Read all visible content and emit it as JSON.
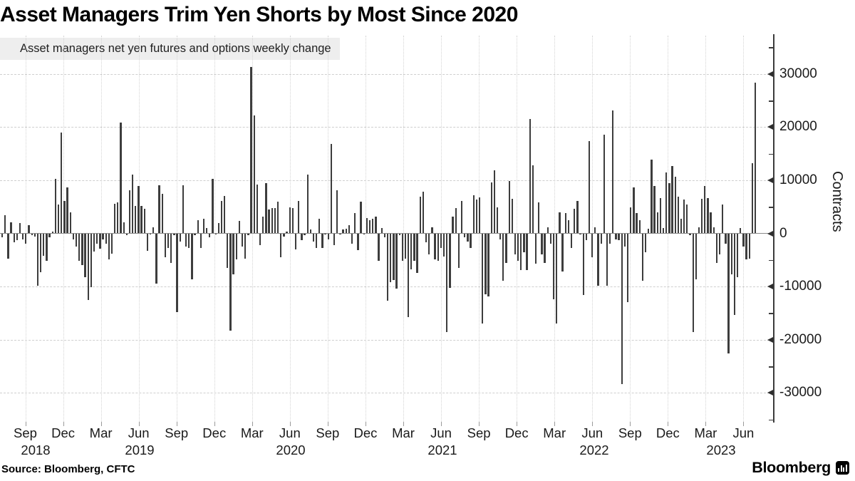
{
  "title": "Asset Managers Trim Yen Shorts by Most Since 2020",
  "legend": {
    "label": "Asset managers net yen futures and options weekly change",
    "swatch_color": "#3d3d3d"
  },
  "source": "Source: Bloomberg, CFTC",
  "branding": {
    "wordmark": "Bloomberg",
    "icon": "bloomberg-terminal-icon"
  },
  "colors": {
    "background": "#ffffff",
    "bar": "#3d3d3d",
    "grid": "#cfcfcf",
    "axis": "#3c3c3c",
    "zero_line": "#8a8a8a",
    "legend_bg": "#eeeeee",
    "text": "#1a1a1a"
  },
  "chart_data": {
    "type": "bar",
    "title": "Asset Managers Trim Yen Shorts by Most Since 2020",
    "series_name": "Asset managers net yen futures and options weekly change",
    "unit": "contracts",
    "frequency": "weekly",
    "x_start": "2018-07",
    "x_end": "2023-07",
    "grid": true,
    "legend_position": "top-left",
    "y_axis": {
      "label": "Contracts",
      "side": "right",
      "tick_values": [
        30000,
        20000,
        10000,
        0,
        -10000,
        -20000,
        -30000
      ],
      "minor_tick_values": [
        35000,
        25000,
        15000,
        5000,
        -5000,
        -15000,
        -25000,
        -35000
      ],
      "range": [
        -33500,
        35500
      ]
    },
    "x_axis": {
      "month_ticks": [
        "Sep",
        "Dec",
        "Mar",
        "Jun",
        "Sep",
        "Dec",
        "Mar",
        "Jun",
        "Sep",
        "Dec",
        "Mar",
        "Jun",
        "Sep",
        "Dec",
        "Mar",
        "Jun",
        "Sep",
        "Dec",
        "Mar",
        "Jun"
      ],
      "year_labels": [
        "2018",
        "2019",
        "2020",
        "2021",
        "2022",
        "2023"
      ]
    },
    "values": [
      -700,
      3400,
      -4700,
      2100,
      -1700,
      -1300,
      1900,
      -1100,
      -2000,
      1500,
      -400,
      -600,
      -9800,
      -7300,
      -4200,
      -5200,
      -800,
      400,
      10200,
      5400,
      19000,
      6100,
      8700,
      3900,
      -1100,
      -2500,
      -5200,
      -6000,
      -8200,
      -12500,
      -10100,
      -3400,
      -2000,
      -2900,
      -1100,
      -2000,
      -4900,
      -3800,
      5600,
      5800,
      20900,
      2100,
      -400,
      8100,
      11100,
      5200,
      8900,
      5100,
      4600,
      -3300,
      -100,
      1200,
      -9500,
      9100,
      7500,
      -4500,
      -2700,
      -5600,
      -300,
      -14800,
      -1600,
      9100,
      -2500,
      -2700,
      -8600,
      -300,
      2500,
      -2800,
      2800,
      1000,
      -700,
      10200,
      -200,
      1900,
      6100,
      7000,
      -6500,
      -18300,
      -7700,
      -4900,
      2400,
      -2500,
      -4700,
      -300,
      31300,
      22200,
      9200,
      -2200,
      3100,
      9500,
      4500,
      4800,
      4700,
      6000,
      -4500,
      -600,
      300,
      4900,
      4800,
      -3000,
      6100,
      -1300,
      -400,
      11100,
      800,
      -1500,
      -2800,
      2700,
      -2700,
      -200,
      -1100,
      16800,
      -2200,
      8100,
      -100,
      800,
      900,
      1600,
      -1900,
      3800,
      -3100,
      6000,
      -100,
      2900,
      2500,
      2800,
      3100,
      -5100,
      1000,
      -800,
      -12700,
      -9200,
      -8800,
      -10400,
      -300,
      -5200,
      -4700,
      -15800,
      -6800,
      -5200,
      -7500,
      6900,
      7900,
      -1700,
      -3900,
      1200,
      -4900,
      -5100,
      -2800,
      -4300,
      -18600,
      -10300,
      3100,
      4700,
      -6500,
      6100,
      -700,
      -1600,
      -2800,
      7200,
      6400,
      6800,
      -17000,
      -11400,
      -11900,
      9600,
      11900,
      4900,
      -1100,
      -8900,
      -5600,
      9800,
      6500,
      -3900,
      -5200,
      -6900,
      -3600,
      -6900,
      21500,
      12800,
      -5700,
      5800,
      -3900,
      -5600,
      1200,
      -2000,
      -12400,
      -17000,
      4000,
      -7200,
      3800,
      2500,
      -2700,
      4600,
      6100,
      -200,
      -11600,
      -1300,
      17300,
      -4500,
      1200,
      -9800,
      -2000,
      18600,
      -9800,
      -2000,
      23100,
      -1100,
      -1300,
      -28400,
      -2500,
      -13000,
      4900,
      8600,
      3800,
      2500,
      -8900,
      -3600,
      900,
      13900,
      8900,
      3900,
      6700,
      1000,
      11500,
      9400,
      12700,
      10700,
      6900,
      2700,
      6400,
      5400,
      -300,
      -18600,
      -8700,
      1200,
      6500,
      8900,
      6700,
      4000,
      1200,
      -5600,
      -4000,
      5400,
      -2000,
      -22600,
      -7700,
      -15400,
      -8200,
      1000,
      -2500,
      -4900,
      -4800,
      13200,
      28300
    ]
  }
}
